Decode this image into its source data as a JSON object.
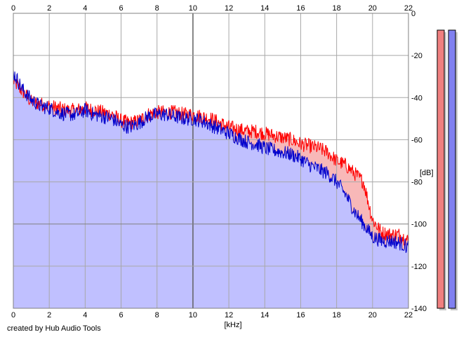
{
  "credit": "created by Hub Audio Tools",
  "chart_data": {
    "type": "area",
    "title": "",
    "xlabel": "[kHz]",
    "ylabel": "[dB]",
    "xlim": [
      0,
      22
    ],
    "ylim": [
      -140,
      0
    ],
    "x_ticks": [
      0,
      2,
      4,
      6,
      8,
      10,
      12,
      14,
      16,
      18,
      20,
      22
    ],
    "y_ticks": [
      0,
      -20,
      -40,
      -60,
      -80,
      -100,
      -120,
      -140
    ],
    "grid": true,
    "x_tick_position": "top and bottom",
    "y_tick_position": "right",
    "series": [
      {
        "color": "#ff0000",
        "fill": "#f8b8b8",
        "x": [
          0,
          0.5,
          1,
          1.5,
          2,
          2.5,
          3,
          3.5,
          4,
          4.5,
          5,
          5.5,
          6,
          6.5,
          7,
          7.5,
          8,
          8.5,
          9,
          9.5,
          10,
          10.5,
          11,
          11.5,
          12,
          12.5,
          13,
          13.5,
          14,
          14.5,
          15,
          15.5,
          16,
          16.5,
          17,
          17.5,
          18,
          18.5,
          19,
          19.5,
          20,
          20.5,
          21,
          21.5,
          22
        ],
        "values": [
          -32,
          -37,
          -42,
          -43,
          -44,
          -45,
          -46,
          -46,
          -45,
          -46,
          -47,
          -48,
          -51,
          -52,
          -51,
          -48,
          -47,
          -47,
          -47,
          -48,
          -48,
          -49,
          -50,
          -52,
          -54,
          -55,
          -56,
          -56,
          -57,
          -58,
          -59,
          -60,
          -62,
          -63,
          -64,
          -66,
          -70,
          -72,
          -76,
          -80,
          -98,
          -104,
          -105,
          -105,
          -108
        ]
      },
      {
        "color": "#0000cc",
        "fill": "#c0c0ff",
        "x": [
          0,
          0.5,
          1,
          1.5,
          2,
          2.5,
          3,
          3.5,
          4,
          4.5,
          5,
          5.5,
          6,
          6.5,
          7,
          7.5,
          8,
          8.5,
          9,
          9.5,
          10,
          10.5,
          11,
          11.5,
          12,
          12.5,
          13,
          13.5,
          14,
          14.5,
          15,
          15.5,
          16,
          16.5,
          17,
          17.5,
          18,
          18.5,
          19,
          19.5,
          20,
          20.5,
          21,
          21.5,
          22
        ],
        "values": [
          -28,
          -36,
          -41,
          -44,
          -45,
          -47,
          -48,
          -48,
          -46,
          -48,
          -49,
          -50,
          -53,
          -54,
          -52,
          -49,
          -48,
          -48,
          -49,
          -50,
          -50,
          -51,
          -53,
          -55,
          -57,
          -59,
          -61,
          -62,
          -64,
          -65,
          -66,
          -67,
          -69,
          -72,
          -74,
          -76,
          -80,
          -86,
          -94,
          -100,
          -106,
          -108,
          -108,
          -109,
          -111
        ]
      }
    ]
  },
  "meters": [
    {
      "color": "#f08080",
      "level": 1.0
    },
    {
      "color": "#8080f0",
      "level": 1.0
    }
  ]
}
